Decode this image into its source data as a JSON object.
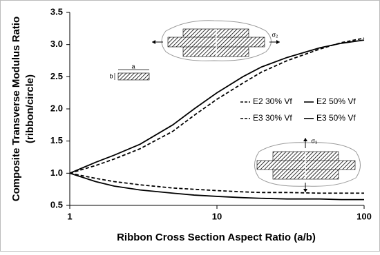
{
  "chart_data": {
    "type": "line",
    "x_label": "Ribbon Cross Section Aspect Ratio (a/b)",
    "y_label": [
      "Composite Transverse Modulus Ratio",
      "(ribbon/circle)"
    ],
    "x_scale": "log",
    "x": [
      1,
      1.5,
      2,
      3,
      5,
      7,
      10,
      15,
      20,
      30,
      50,
      70,
      100
    ],
    "series": [
      {
        "name": "E2 30% Vf",
        "color": "#000000",
        "dashed": true,
        "values": [
          1.0,
          1.12,
          1.22,
          1.38,
          1.65,
          1.9,
          2.15,
          2.4,
          2.57,
          2.75,
          2.93,
          3.03,
          3.1
        ]
      },
      {
        "name": "E2 50% Vf",
        "color": "#000000",
        "dashed": false,
        "values": [
          1.0,
          1.17,
          1.28,
          1.45,
          1.75,
          2.0,
          2.25,
          2.5,
          2.65,
          2.8,
          2.95,
          3.02,
          3.07
        ]
      },
      {
        "name": "E3 30% Vf",
        "color": "#000000",
        "dashed": true,
        "values": [
          1.0,
          0.92,
          0.87,
          0.82,
          0.77,
          0.75,
          0.73,
          0.71,
          0.7,
          0.7,
          0.69,
          0.69,
          0.69
        ]
      },
      {
        "name": "E3 50% Vf",
        "color": "#000000",
        "dashed": false,
        "values": [
          1.0,
          0.87,
          0.8,
          0.74,
          0.69,
          0.66,
          0.64,
          0.62,
          0.61,
          0.6,
          0.6,
          0.59,
          0.59
        ]
      }
    ],
    "xlim": [
      1,
      100
    ],
    "xticks": [
      1,
      10,
      100
    ],
    "ylim": [
      0.5,
      3.5
    ],
    "yticks": [
      0.5,
      {
        "value": 1,
        "label": "1.0"
      },
      1.5,
      {
        "value": 2,
        "label": "2.0"
      },
      2.5,
      {
        "value": 3,
        "label": "3.0"
      },
      3.5
    ],
    "annotations": [
      "σ₂",
      "σ₃",
      "a",
      "b"
    ]
  }
}
